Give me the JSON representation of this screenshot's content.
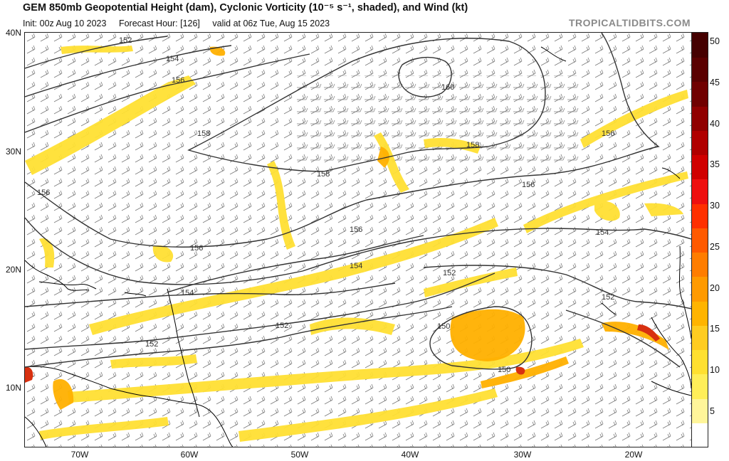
{
  "title": "GEM 850mb Geopotential Height (dam), Cyclonic Vorticity (10⁻⁵ s⁻¹, shaded), and Wind (kt)",
  "init": "Init: 00z Aug 10 2023",
  "forecast_hour": "Forecast Hour: [126]",
  "valid": "valid at 06z Tue, Aug 15 2023",
  "brand": "TROPICALTIDBITS.COM",
  "lat_labels": [
    "40N",
    "30N",
    "20N",
    "10N"
  ],
  "lon_labels": [
    "70W",
    "60W",
    "50W",
    "40W",
    "30W",
    "20W"
  ],
  "colorbar": {
    "labels": [
      "50",
      "45",
      "40",
      "35",
      "30",
      "25",
      "20",
      "15",
      "10",
      "5"
    ],
    "colors": [
      "#ffffff",
      "#fff59a",
      "#ffee58",
      "#ffe030",
      "#ffcc20",
      "#ffb400",
      "#ff9a00",
      "#ff7d00",
      "#ff5a00",
      "#ff3000",
      "#ee1010",
      "#d00000",
      "#b00000",
      "#900000",
      "#700000",
      "#5a0000",
      "#450000"
    ]
  },
  "contour_labels": {
    "c150": "150",
    "c152": "152",
    "c154": "154",
    "c156": "156",
    "c158": "158",
    "c160": "160"
  },
  "colors": {
    "contour": "#333333",
    "barb": "#666666",
    "coast": "#000000",
    "vort_low": "#ffe033",
    "vort_mid": "#ffb000",
    "vort_high": "#d83010"
  }
}
